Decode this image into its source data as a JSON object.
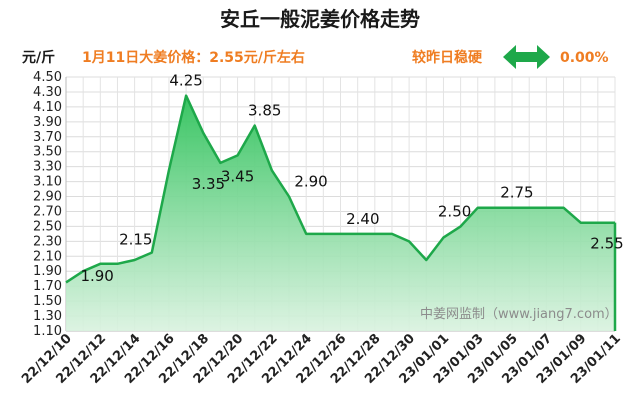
{
  "header": {
    "title": "安丘一般泥姜价格走势",
    "unit": "元/斤",
    "price_note": "1月11日大姜价格：2.55元/斤左右",
    "trend_label": "较昨日稳硬",
    "change_pct": "0.00%",
    "trend_icon": "double-arrow-icon",
    "trend_icon_color": "#1ea84a"
  },
  "watermark": "中姜网监制（www.jiang7.com）",
  "colors": {
    "line": "#1ea84a",
    "fill_top": "#2fc25b",
    "fill_bottom": "#d9f2df",
    "accent": "#ef7d22"
  },
  "chart_data": {
    "type": "area",
    "title": "安丘一般泥姜价格走势",
    "ylabel": "元/斤",
    "xlabel": "",
    "ylim": [
      1.1,
      4.5
    ],
    "yticks": [
      "1.10",
      "1.30",
      "1.50",
      "1.70",
      "1.90",
      "2.10",
      "2.30",
      "2.50",
      "2.70",
      "2.90",
      "3.10",
      "3.30",
      "3.50",
      "3.70",
      "3.90",
      "4.10",
      "4.30",
      "4.50"
    ],
    "x_tick_labels": [
      "22/12/10",
      "22/12/12",
      "22/12/14",
      "22/12/16",
      "22/12/18",
      "22/12/20",
      "22/12/22",
      "22/12/24",
      "22/12/26",
      "22/12/28",
      "22/12/30",
      "23/01/01",
      "23/01/03",
      "23/01/05",
      "23/01/07",
      "23/01/09",
      "23/01/11"
    ],
    "grid": true,
    "series": [
      {
        "x": [
          "22/12/10",
          "22/12/11",
          "22/12/12",
          "22/12/13",
          "22/12/14",
          "22/12/15",
          "22/12/16",
          "22/12/17",
          "22/12/18",
          "22/12/19",
          "22/12/20",
          "22/12/21",
          "22/12/22",
          "22/12/23",
          "22/12/24",
          "22/12/25",
          "22/12/26",
          "22/12/27",
          "22/12/28",
          "22/12/29",
          "22/12/30",
          "22/12/31",
          "23/01/01",
          "23/01/02",
          "23/01/03",
          "23/01/04",
          "23/01/05",
          "23/01/06",
          "23/01/07",
          "23/01/08",
          "23/01/09",
          "23/01/10",
          "23/01/11"
        ],
        "values": [
          1.75,
          1.9,
          2.0,
          2.0,
          2.05,
          2.15,
          3.25,
          4.25,
          3.75,
          3.35,
          3.45,
          3.85,
          3.25,
          2.9,
          2.4,
          2.4,
          2.4,
          2.4,
          2.4,
          2.4,
          2.3,
          2.05,
          2.35,
          2.5,
          2.75,
          2.75,
          2.75,
          2.75,
          2.75,
          2.75,
          2.55,
          2.55,
          2.55
        ]
      }
    ],
    "data_labels": [
      {
        "x": "22/12/11",
        "text": "1.90"
      },
      {
        "x": "22/12/15",
        "text": "2.15"
      },
      {
        "x": "22/12/17",
        "text": "4.25"
      },
      {
        "x": "22/12/19",
        "text": "3.35"
      },
      {
        "x": "22/12/20",
        "text": "3.45"
      },
      {
        "x": "22/12/21",
        "text": "3.85"
      },
      {
        "x": "22/12/23",
        "text": "2.90"
      },
      {
        "x": "22/12/28",
        "text": "2.40"
      },
      {
        "x": "23/01/02",
        "text": "2.50"
      },
      {
        "x": "23/01/04",
        "text": "2.75"
      },
      {
        "x": "23/01/11",
        "text": "2.55"
      }
    ]
  }
}
